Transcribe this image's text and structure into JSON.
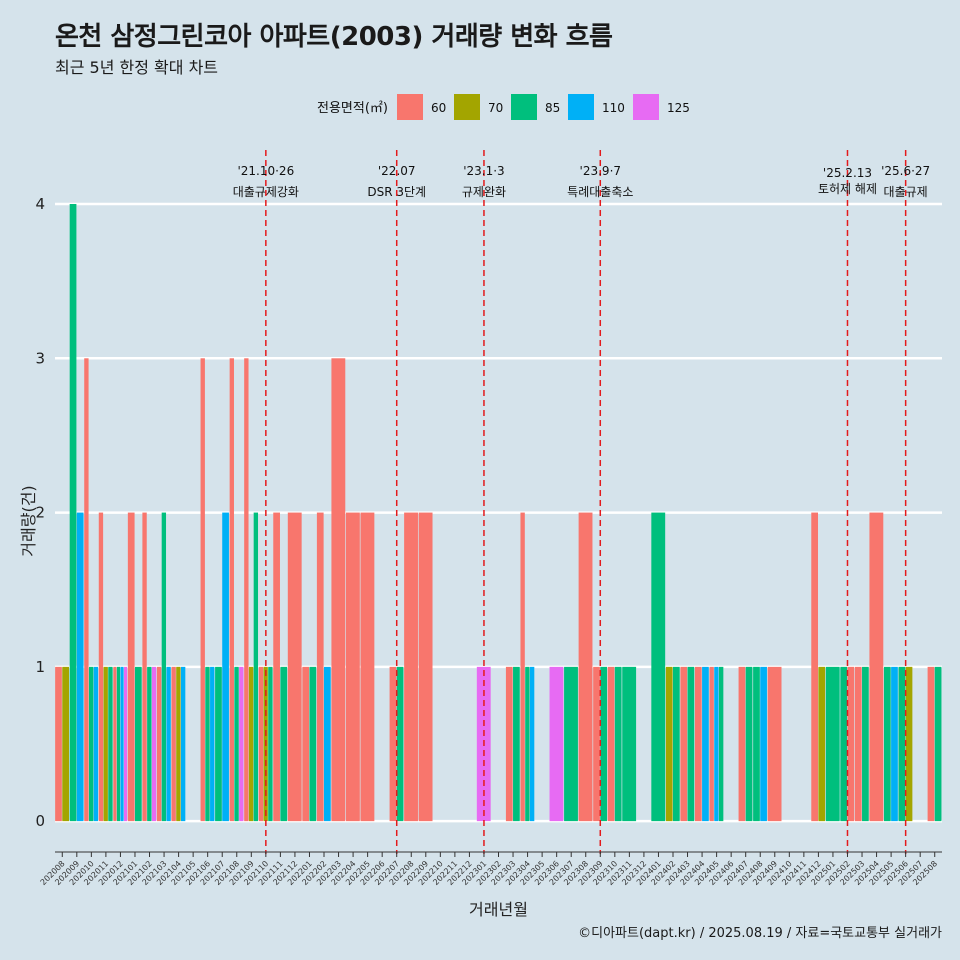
{
  "title": "온천 삼정그린코아 아파트(2003) 거래량 변화 흐름",
  "subtitle": "최근 5년 한정 확대 차트",
  "caption": "©디아파트(dapt.kr) / 2025.08.19 / 자료=국토교통부 실거래가",
  "colors": {
    "60": "#f8766d",
    "70": "#a3a500",
    "85": "#00bf7d",
    "110": "#00b0f6",
    "125": "#e76bf3",
    "background": "#d5e3eb",
    "event_line": "#e31a1c"
  },
  "chart_data": {
    "type": "bar",
    "xlabel": "거래년월",
    "ylabel": "거래량(건)",
    "ylim": [
      -0.2,
      4.35
    ],
    "yticks": [
      0,
      1,
      2,
      3,
      4
    ],
    "grid": "horizontal",
    "legend": {
      "title": "전용면적(㎡)",
      "placement": "top",
      "entries": [
        "60",
        "70",
        "85",
        "110",
        "125"
      ]
    },
    "categories": [
      "202008",
      "202009",
      "202010",
      "202011",
      "202012",
      "202101",
      "202102",
      "202103",
      "202104",
      "202105",
      "202106",
      "202107",
      "202108",
      "202109",
      "202110",
      "202111",
      "202112",
      "202201",
      "202202",
      "202203",
      "202204",
      "202205",
      "202206",
      "202207",
      "202208",
      "202209",
      "202210",
      "202211",
      "202212",
      "202301",
      "202302",
      "202303",
      "202304",
      "202305",
      "202306",
      "202307",
      "202308",
      "202309",
      "202310",
      "202311",
      "202312",
      "202401",
      "202402",
      "202403",
      "202404",
      "202405",
      "202406",
      "202407",
      "202408",
      "202409",
      "202410",
      "202411",
      "202412",
      "202501",
      "202502",
      "202503",
      "202504",
      "202505",
      "202506",
      "202507",
      "202508"
    ],
    "bars": [
      {
        "month": "202008",
        "areas": [
          {
            "area": "60",
            "count": 1
          },
          {
            "area": "70",
            "count": 1
          }
        ]
      },
      {
        "month": "202009",
        "areas": [
          {
            "area": "85",
            "count": 4
          },
          {
            "area": "110",
            "count": 2
          }
        ]
      },
      {
        "month": "202010",
        "areas": [
          {
            "area": "60",
            "count": 3
          },
          {
            "area": "85",
            "count": 1
          },
          {
            "area": "110",
            "count": 1
          }
        ]
      },
      {
        "month": "202011",
        "areas": [
          {
            "area": "60",
            "count": 2
          },
          {
            "area": "70",
            "count": 1
          },
          {
            "area": "85",
            "count": 1
          }
        ]
      },
      {
        "month": "202012",
        "areas": [
          {
            "area": "60",
            "count": 1
          },
          {
            "area": "85",
            "count": 1
          },
          {
            "area": "110",
            "count": 1
          },
          {
            "area": "125",
            "count": 1
          }
        ]
      },
      {
        "month": "202101",
        "areas": [
          {
            "area": "60",
            "count": 2
          },
          {
            "area": "85",
            "count": 1
          }
        ]
      },
      {
        "month": "202102",
        "areas": [
          {
            "area": "60",
            "count": 2
          },
          {
            "area": "85",
            "count": 1
          },
          {
            "area": "125",
            "count": 1
          }
        ]
      },
      {
        "month": "202103",
        "areas": [
          {
            "area": "60",
            "count": 1
          },
          {
            "area": "85",
            "count": 2
          },
          {
            "area": "110",
            "count": 1
          }
        ]
      },
      {
        "month": "202104",
        "areas": [
          {
            "area": "60",
            "count": 1
          },
          {
            "area": "70",
            "count": 1
          },
          {
            "area": "110",
            "count": 1
          }
        ]
      },
      {
        "month": "202105",
        "areas": []
      },
      {
        "month": "202106",
        "areas": [
          {
            "area": "60",
            "count": 3
          },
          {
            "area": "85",
            "count": 1
          },
          {
            "area": "110",
            "count": 1
          }
        ]
      },
      {
        "month": "202107",
        "areas": [
          {
            "area": "85",
            "count": 1
          },
          {
            "area": "110",
            "count": 2
          }
        ]
      },
      {
        "month": "202108",
        "areas": [
          {
            "area": "60",
            "count": 3
          },
          {
            "area": "85",
            "count": 1
          },
          {
            "area": "125",
            "count": 1
          }
        ]
      },
      {
        "month": "202109",
        "areas": [
          {
            "area": "60",
            "count": 3
          },
          {
            "area": "70",
            "count": 1
          },
          {
            "area": "85",
            "count": 2
          }
        ]
      },
      {
        "month": "202110",
        "areas": [
          {
            "area": "60",
            "count": 1
          },
          {
            "area": "70",
            "count": 1
          },
          {
            "area": "85",
            "count": 1
          }
        ]
      },
      {
        "month": "202111",
        "areas": [
          {
            "area": "60",
            "count": 2
          },
          {
            "area": "85",
            "count": 1
          }
        ]
      },
      {
        "month": "202112",
        "areas": [
          {
            "area": "60",
            "count": 2
          }
        ]
      },
      {
        "month": "202201",
        "areas": [
          {
            "area": "60",
            "count": 1
          },
          {
            "area": "85",
            "count": 1
          }
        ]
      },
      {
        "month": "202202",
        "areas": [
          {
            "area": "60",
            "count": 2
          },
          {
            "area": "110",
            "count": 1
          }
        ]
      },
      {
        "month": "202203",
        "areas": [
          {
            "area": "60",
            "count": 3
          }
        ]
      },
      {
        "month": "202204",
        "areas": [
          {
            "area": "60",
            "count": 2
          }
        ]
      },
      {
        "month": "202205",
        "areas": [
          {
            "area": "60",
            "count": 2
          }
        ]
      },
      {
        "month": "202206",
        "areas": []
      },
      {
        "month": "202207",
        "areas": [
          {
            "area": "60",
            "count": 1
          },
          {
            "area": "85",
            "count": 1
          }
        ]
      },
      {
        "month": "202208",
        "areas": [
          {
            "area": "60",
            "count": 2
          }
        ]
      },
      {
        "month": "202209",
        "areas": [
          {
            "area": "60",
            "count": 2
          }
        ]
      },
      {
        "month": "202210",
        "areas": []
      },
      {
        "month": "202211",
        "areas": []
      },
      {
        "month": "202212",
        "areas": []
      },
      {
        "month": "202301",
        "areas": [
          {
            "area": "125",
            "count": 1
          }
        ]
      },
      {
        "month": "202302",
        "areas": []
      },
      {
        "month": "202303",
        "areas": [
          {
            "area": "60",
            "count": 1
          },
          {
            "area": "85",
            "count": 1
          }
        ]
      },
      {
        "month": "202304",
        "areas": [
          {
            "area": "60",
            "count": 2
          },
          {
            "area": "85",
            "count": 1
          },
          {
            "area": "110",
            "count": 1
          }
        ]
      },
      {
        "month": "202305",
        "areas": []
      },
      {
        "month": "202306",
        "areas": [
          {
            "area": "125",
            "count": 1
          }
        ]
      },
      {
        "month": "202307",
        "areas": [
          {
            "area": "85",
            "count": 1
          }
        ]
      },
      {
        "month": "202308",
        "areas": [
          {
            "area": "60",
            "count": 2
          }
        ]
      },
      {
        "month": "202309",
        "areas": [
          {
            "area": "60",
            "count": 1
          },
          {
            "area": "85",
            "count": 1
          }
        ]
      },
      {
        "month": "202310",
        "areas": [
          {
            "area": "60",
            "count": 1
          },
          {
            "area": "85",
            "count": 1
          }
        ]
      },
      {
        "month": "202311",
        "areas": [
          {
            "area": "85",
            "count": 1
          }
        ]
      },
      {
        "month": "202312",
        "areas": []
      },
      {
        "month": "202401",
        "areas": [
          {
            "area": "85",
            "count": 2
          }
        ]
      },
      {
        "month": "202402",
        "areas": [
          {
            "area": "70",
            "count": 1
          },
          {
            "area": "85",
            "count": 1
          }
        ]
      },
      {
        "month": "202403",
        "areas": [
          {
            "area": "60",
            "count": 1
          },
          {
            "area": "85",
            "count": 1
          }
        ]
      },
      {
        "month": "202404",
        "areas": [
          {
            "area": "60",
            "count": 1
          },
          {
            "area": "110",
            "count": 1
          }
        ]
      },
      {
        "month": "202405",
        "areas": [
          {
            "area": "60",
            "count": 1
          },
          {
            "area": "110",
            "count": 1
          },
          {
            "area": "85",
            "count": 1
          }
        ]
      },
      {
        "month": "202406",
        "areas": []
      },
      {
        "month": "202407",
        "areas": [
          {
            "area": "60",
            "count": 1
          },
          {
            "area": "85",
            "count": 1
          }
        ]
      },
      {
        "month": "202408",
        "areas": [
          {
            "area": "85",
            "count": 1
          },
          {
            "area": "110",
            "count": 1
          }
        ]
      },
      {
        "month": "202409",
        "areas": [
          {
            "area": "60",
            "count": 1
          }
        ]
      },
      {
        "month": "202410",
        "areas": []
      },
      {
        "month": "202411",
        "areas": []
      },
      {
        "month": "202412",
        "areas": [
          {
            "area": "60",
            "count": 2
          },
          {
            "area": "70",
            "count": 1
          }
        ]
      },
      {
        "month": "202501",
        "areas": [
          {
            "area": "85",
            "count": 1
          }
        ]
      },
      {
        "month": "202502",
        "areas": [
          {
            "area": "85",
            "count": 1
          },
          {
            "area": "60",
            "count": 1
          }
        ]
      },
      {
        "month": "202503",
        "areas": [
          {
            "area": "60",
            "count": 1
          },
          {
            "area": "85",
            "count": 1
          }
        ]
      },
      {
        "month": "202504",
        "areas": [
          {
            "area": "60",
            "count": 2
          }
        ]
      },
      {
        "month": "202505",
        "areas": [
          {
            "area": "85",
            "count": 1
          },
          {
            "area": "110",
            "count": 1
          }
        ]
      },
      {
        "month": "202506",
        "areas": [
          {
            "area": "85",
            "count": 1
          },
          {
            "area": "70",
            "count": 1
          }
        ]
      },
      {
        "month": "202507",
        "areas": []
      },
      {
        "month": "202508",
        "areas": [
          {
            "area": "60",
            "count": 1
          },
          {
            "area": "85",
            "count": 1
          }
        ]
      }
    ],
    "events": [
      {
        "month": "202110",
        "label1": "'21.10·26",
        "label2": "대출규제강화"
      },
      {
        "month": "202207",
        "label1": "'22.07",
        "label2": "DSR 3단계"
      },
      {
        "month": "202301",
        "label1": "'23.1·3",
        "label2": "규제완화"
      },
      {
        "month": "202309",
        "label1": "'23.9·7",
        "label2": "특례대출축소"
      },
      {
        "month": "202502",
        "label1": "'25.2.13",
        "label2": "토허제 해제"
      },
      {
        "month": "202506",
        "label1": "'25.6·27",
        "label2": "대출규제"
      }
    ]
  }
}
